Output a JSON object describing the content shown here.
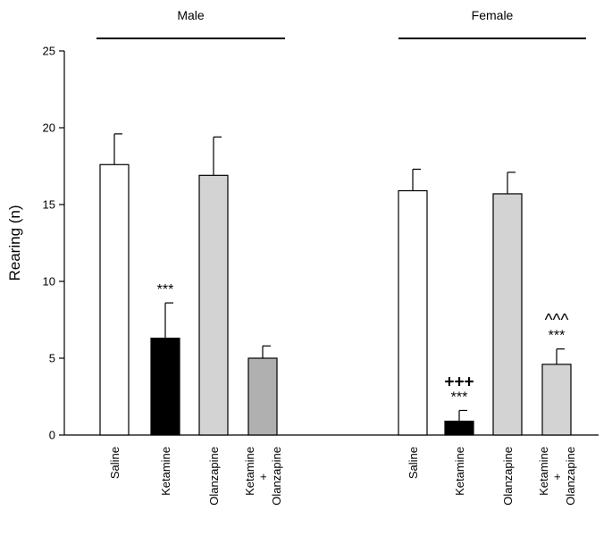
{
  "chart_data": {
    "type": "bar",
    "ylabel": "Rearing (n)",
    "ylim": [
      0,
      25
    ],
    "yticks": [
      "0",
      "5",
      "10",
      "15",
      "20",
      "25"
    ],
    "groups": [
      {
        "name": "Male",
        "bars": [
          {
            "label": [
              "Saline"
            ],
            "value": 17.6,
            "error": 2.0,
            "color": "#ffffff",
            "annotations": []
          },
          {
            "label": [
              "Ketamine"
            ],
            "value": 6.3,
            "error": 2.3,
            "color": "#000000",
            "annotations": [
              "***"
            ]
          },
          {
            "label": [
              "Olanzapine"
            ],
            "value": 16.9,
            "error": 2.5,
            "color": "#d3d3d3",
            "annotations": []
          },
          {
            "label": [
              "Ketamine",
              "+",
              "Olanzapine"
            ],
            "value": 5.0,
            "error": 0.8,
            "color": "#b0b0b0",
            "annotations": []
          }
        ]
      },
      {
        "name": "Female",
        "bars": [
          {
            "label": [
              "Saline"
            ],
            "value": 15.9,
            "error": 1.4,
            "color": "#ffffff",
            "annotations": []
          },
          {
            "label": [
              "Ketamine"
            ],
            "value": 0.9,
            "error": 0.7,
            "color": "#000000",
            "annotations": [
              "***",
              "+++"
            ]
          },
          {
            "label": [
              "Olanzapine"
            ],
            "value": 15.7,
            "error": 1.4,
            "color": "#d3d3d3",
            "annotations": []
          },
          {
            "label": [
              "Ketamine",
              "+",
              "Olanzapine"
            ],
            "value": 4.6,
            "error": 1.0,
            "color": "#d3d3d3",
            "annotations": [
              "***",
              "^^^"
            ]
          }
        ]
      }
    ]
  }
}
